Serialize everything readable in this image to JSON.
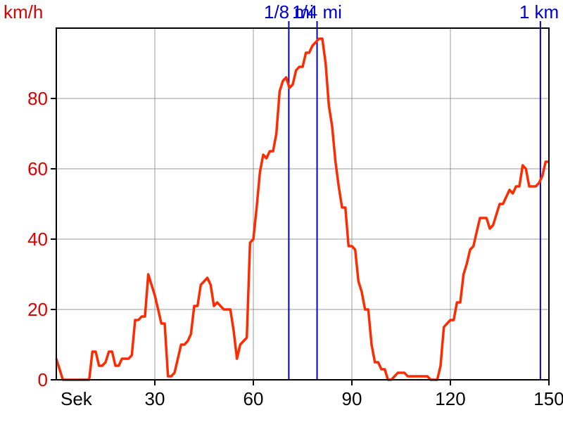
{
  "chart_data": {
    "type": "line",
    "ylabel": "km/h",
    "xlabel": "Sek",
    "xlim": [
      0,
      150
    ],
    "ylim": [
      0,
      100
    ],
    "xticks": [
      30,
      60,
      90,
      120,
      150
    ],
    "yticks": [
      0,
      20,
      40,
      60,
      80
    ],
    "grid": true,
    "colors": {
      "line": "#ff2a00",
      "axis_text_y": "#dd0000",
      "marker": "#0000cc",
      "grid": "#999999"
    },
    "markers": [
      {
        "label": "1/8 mi",
        "x": 70.8
      },
      {
        "label": "1/4 mi",
        "x": 79.4
      },
      {
        "label": "1 km",
        "x": 147.4
      }
    ],
    "series": [
      {
        "x": [
          0,
          1,
          2,
          3,
          4,
          5,
          6,
          7,
          8,
          9,
          10,
          11,
          12,
          13,
          14,
          15,
          16,
          17,
          18,
          19,
          20,
          21,
          22,
          23,
          24,
          25,
          26,
          27,
          28,
          29,
          30,
          31,
          32,
          33,
          34,
          35,
          36,
          37,
          38,
          39,
          40,
          41,
          42,
          43,
          44,
          45,
          46,
          47,
          48,
          49,
          50,
          51,
          52,
          53,
          54,
          55,
          56,
          57,
          58,
          59,
          60,
          61,
          62,
          63,
          64,
          65,
          66,
          67,
          68,
          69,
          70,
          71,
          72,
          73,
          74,
          75,
          76,
          77,
          78,
          79,
          80,
          81,
          82,
          83,
          84,
          85,
          86,
          87,
          88,
          89,
          90,
          91,
          92,
          93,
          94,
          95,
          96,
          97,
          98,
          99,
          100,
          101,
          102,
          103,
          104,
          105,
          106,
          107,
          108,
          109,
          110,
          111,
          112,
          113,
          114,
          115,
          116,
          117,
          118,
          119,
          120,
          121,
          122,
          123,
          124,
          125,
          126,
          127,
          128,
          129,
          130,
          131,
          132,
          133,
          134,
          135,
          136,
          137,
          138,
          139,
          140,
          141,
          142,
          143,
          144,
          145,
          146,
          147,
          148,
          149,
          150
        ],
        "values": [
          6,
          3,
          0,
          0,
          0,
          0,
          0,
          0,
          0,
          0,
          0,
          8,
          8,
          4,
          4,
          5,
          8,
          8,
          4,
          4,
          6,
          6,
          6,
          7,
          17,
          17,
          18,
          18,
          30,
          27,
          24,
          20,
          16,
          16,
          1,
          1,
          2,
          6,
          10,
          10,
          11,
          13,
          21,
          21,
          27,
          28,
          29,
          27,
          21,
          22,
          21,
          20,
          20,
          20,
          14,
          6,
          10,
          11,
          12,
          39,
          40,
          49,
          59,
          64,
          63,
          65,
          65,
          70,
          82,
          85,
          86,
          83,
          84,
          88,
          89,
          89,
          93,
          93,
          95,
          96,
          97,
          97,
          90,
          78,
          72,
          62,
          55,
          49,
          49,
          38,
          38,
          37,
          28,
          25,
          20,
          20,
          10,
          5,
          5,
          3,
          3,
          0,
          0,
          1,
          2,
          2,
          2,
          1,
          1,
          1,
          1,
          1,
          1,
          1,
          0,
          0,
          0,
          4,
          15,
          16,
          17,
          17,
          22,
          22,
          30,
          33,
          37,
          38,
          42,
          46,
          46,
          46,
          43,
          44,
          47,
          50,
          50,
          52,
          54,
          53,
          55,
          55,
          61,
          60,
          55,
          55,
          55,
          56,
          58,
          62,
          62
        ]
      }
    ]
  }
}
